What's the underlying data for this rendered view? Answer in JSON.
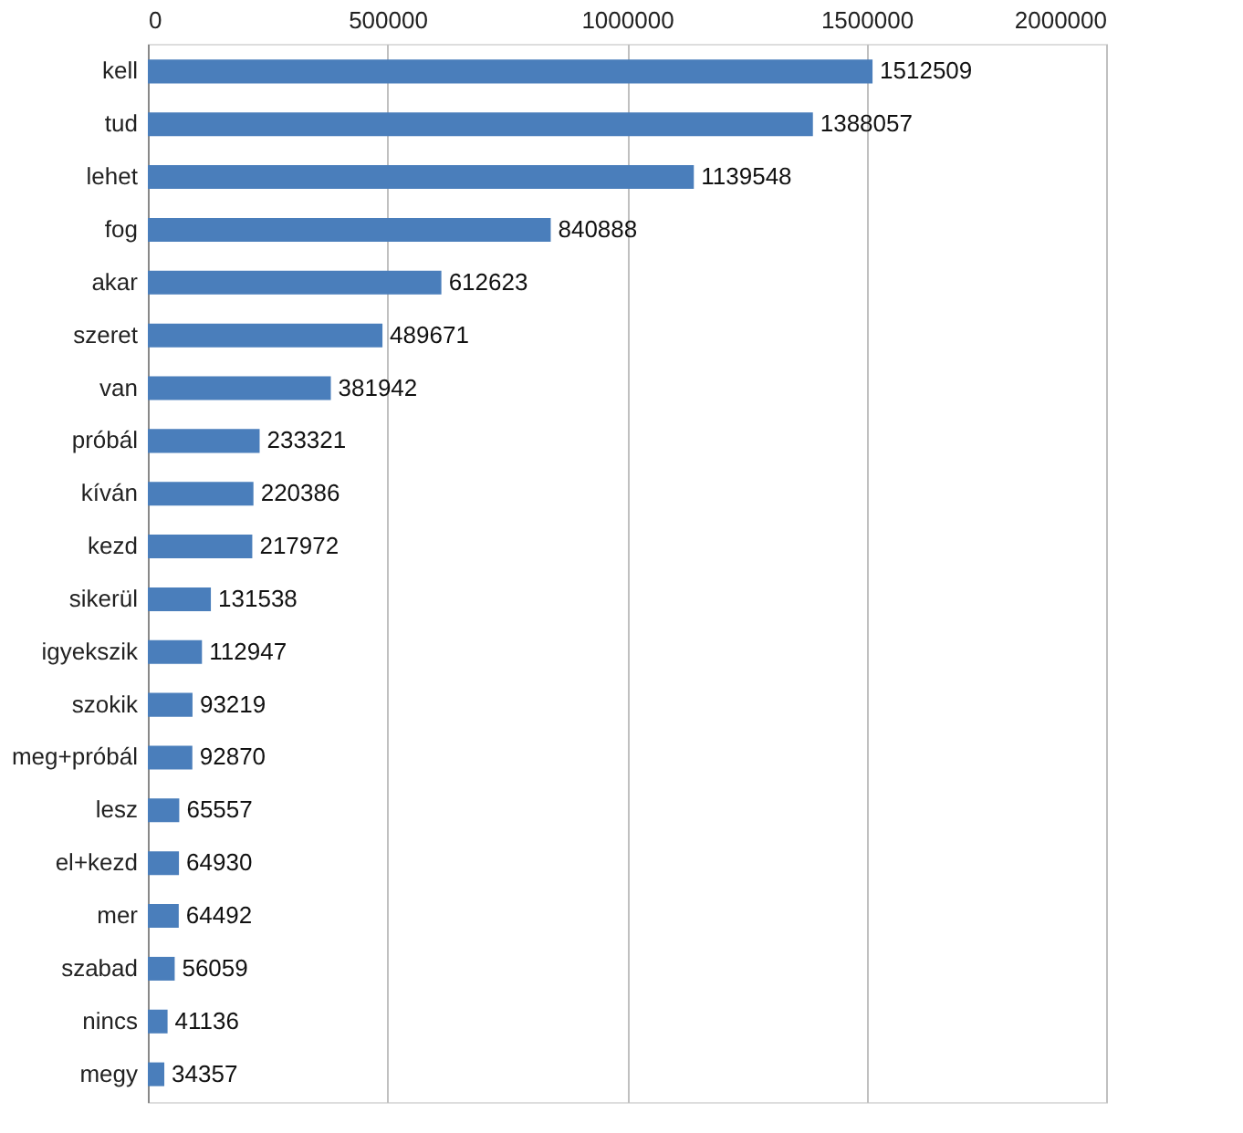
{
  "chart_data": {
    "type": "bar",
    "orientation": "horizontal",
    "categories": [
      "kell",
      "tud",
      "lehet",
      "fog",
      "akar",
      "szeret",
      "van",
      "próbál",
      "kíván",
      "kezd",
      "sikerül",
      "igyekszik",
      "szokik",
      "meg+próbál",
      "lesz",
      "el+kezd",
      "mer",
      "szabad",
      "nincs",
      "megy"
    ],
    "values": [
      1512509,
      1388057,
      1139548,
      840888,
      612623,
      489671,
      381942,
      233321,
      220386,
      217972,
      131538,
      112947,
      93219,
      92870,
      65557,
      64930,
      64492,
      56059,
      41136,
      34357
    ],
    "color": "#4a7ebb",
    "xlim": [
      0,
      2000000
    ],
    "xticks": [
      0,
      500000,
      1000000,
      1500000,
      2000000
    ],
    "grid": "x",
    "data_labels": true
  }
}
